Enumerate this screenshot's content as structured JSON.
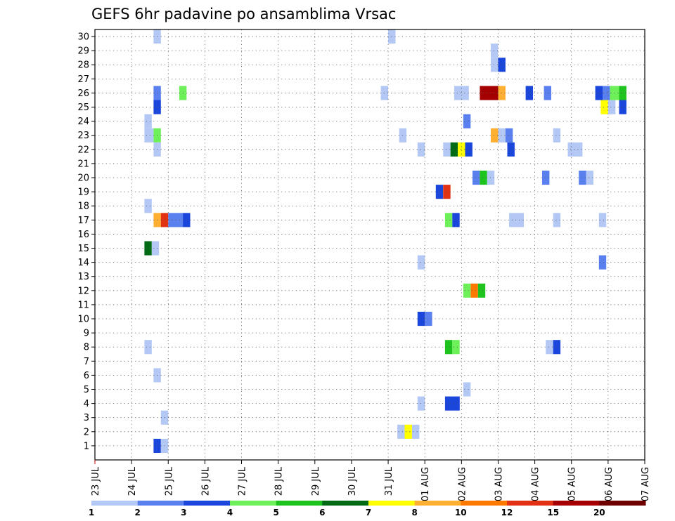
{
  "chart_data": {
    "type": "heatmap",
    "title": "GEFS 6hr padavine po ansamblima Vrsac",
    "xlabel": "",
    "ylabel": "",
    "x_ticks": [
      "23 JUL",
      "24 JUL",
      "25 JUL",
      "26 JUL",
      "27 JUL",
      "28 JUL",
      "29 JUL",
      "30 JUL",
      "31 JUL",
      "01 AUG",
      "02 AUG",
      "03 AUG",
      "04 AUG",
      "05 AUG",
      "06 AUG",
      "07 AUG"
    ],
    "y_ticks": [
      "1",
      "2",
      "3",
      "4",
      "5",
      "6",
      "7",
      "8",
      "9",
      "10",
      "11",
      "12",
      "13",
      "14",
      "15",
      "16",
      "17",
      "18",
      "19",
      "20",
      "21",
      "22",
      "23",
      "24",
      "25",
      "26",
      "27",
      "28",
      "29",
      "30"
    ],
    "x_range_days": [
      0,
      15
    ],
    "y_range": [
      0,
      30.5
    ],
    "grid": true,
    "colorbar": {
      "labels": [
        "1",
        "2",
        "3",
        "4",
        "5",
        "6",
        "7",
        "8",
        "10",
        "12",
        "15",
        "20"
      ],
      "colors": [
        "#b4c8f5",
        "#5a80f0",
        "#1a46dc",
        "#6ef05a",
        "#1ec31e",
        "#006a14",
        "#ffff00",
        "#ffaf32",
        "#ff7800",
        "#e13214",
        "#a50000",
        "#6e0000"
      ]
    },
    "cells": [
      {
        "m": 30,
        "d": [
          [
            1.6,
            1.8,
            1
          ]
        ]
      },
      {
        "m": 30,
        "d": [
          [
            8.0,
            8.2,
            1
          ]
        ]
      },
      {
        "m": 29,
        "d": [
          [
            10.8,
            11.0,
            1
          ]
        ]
      },
      {
        "m": 28,
        "d": [
          [
            10.8,
            11.0,
            1
          ],
          [
            11.0,
            11.2,
            3
          ]
        ]
      },
      {
        "m": 26,
        "d": [
          [
            1.6,
            1.8,
            2
          ],
          [
            2.3,
            2.5,
            4
          ],
          [
            7.8,
            8.0,
            1
          ],
          [
            9.8,
            10.2,
            1
          ],
          [
            10.5,
            11.0,
            11
          ],
          [
            11.0,
            11.2,
            8
          ],
          [
            11.75,
            11.95,
            3
          ],
          [
            12.25,
            12.45,
            2
          ],
          [
            13.65,
            13.85,
            3
          ],
          [
            13.85,
            14.05,
            2
          ],
          [
            14.05,
            14.3,
            4
          ],
          [
            14.3,
            14.5,
            5
          ]
        ]
      },
      {
        "m": 25,
        "d": [
          [
            1.6,
            1.8,
            3
          ],
          [
            13.8,
            14.0,
            7
          ],
          [
            14.0,
            14.2,
            1
          ],
          [
            14.3,
            14.5,
            3
          ]
        ]
      },
      {
        "m": 24,
        "d": [
          [
            1.35,
            1.55,
            1
          ],
          [
            10.05,
            10.25,
            2
          ]
        ]
      },
      {
        "m": 23,
        "d": [
          [
            1.35,
            1.6,
            1
          ],
          [
            1.6,
            1.8,
            4
          ],
          [
            8.3,
            8.5,
            1
          ],
          [
            10.8,
            11.0,
            8
          ],
          [
            11.0,
            11.2,
            1
          ],
          [
            11.2,
            11.4,
            2
          ],
          [
            12.5,
            12.7,
            1
          ]
        ]
      },
      {
        "m": 22,
        "d": [
          [
            1.6,
            1.8,
            1
          ],
          [
            8.8,
            9.0,
            1
          ],
          [
            9.5,
            9.7,
            1
          ],
          [
            9.7,
            9.9,
            6
          ],
          [
            9.9,
            10.1,
            7
          ],
          [
            10.1,
            10.3,
            3
          ],
          [
            11.25,
            11.45,
            3
          ],
          [
            12.9,
            13.3,
            1
          ]
        ]
      },
      {
        "m": 20,
        "d": [
          [
            10.3,
            10.5,
            2
          ],
          [
            10.5,
            10.7,
            5
          ],
          [
            10.7,
            10.9,
            1
          ],
          [
            12.2,
            12.4,
            2
          ],
          [
            13.2,
            13.4,
            2
          ],
          [
            13.4,
            13.6,
            1
          ]
        ]
      },
      {
        "m": 19,
        "d": [
          [
            9.3,
            9.5,
            3
          ],
          [
            9.5,
            9.7,
            10
          ]
        ]
      },
      {
        "m": 18,
        "d": [
          [
            1.35,
            1.55,
            1
          ]
        ]
      },
      {
        "m": 17,
        "d": [
          [
            1.6,
            1.8,
            8
          ],
          [
            1.8,
            2.0,
            10
          ],
          [
            2.0,
            2.4,
            2
          ],
          [
            2.4,
            2.6,
            3
          ],
          [
            9.55,
            9.75,
            4
          ],
          [
            9.75,
            9.95,
            3
          ],
          [
            11.3,
            11.7,
            1
          ],
          [
            12.5,
            12.7,
            1
          ],
          [
            13.75,
            13.95,
            1
          ]
        ]
      },
      {
        "m": 15,
        "d": [
          [
            1.35,
            1.55,
            6
          ],
          [
            1.55,
            1.75,
            1
          ]
        ]
      },
      {
        "m": 14,
        "d": [
          [
            8.8,
            9.0,
            1
          ],
          [
            13.75,
            13.95,
            2
          ]
        ]
      },
      {
        "m": 12,
        "d": [
          [
            10.05,
            10.25,
            4
          ],
          [
            10.25,
            10.45,
            9
          ],
          [
            10.45,
            10.65,
            5
          ]
        ]
      },
      {
        "m": 10,
        "d": [
          [
            8.8,
            9.0,
            3
          ],
          [
            9.0,
            9.2,
            2
          ]
        ]
      },
      {
        "m": 8,
        "d": [
          [
            1.35,
            1.55,
            1
          ],
          [
            9.55,
            9.75,
            5
          ],
          [
            9.75,
            9.95,
            4
          ],
          [
            12.3,
            12.5,
            1
          ],
          [
            12.5,
            12.7,
            3
          ]
        ]
      },
      {
        "m": 6,
        "d": [
          [
            1.6,
            1.8,
            1
          ]
        ]
      },
      {
        "m": 5,
        "d": [
          [
            10.05,
            10.25,
            1
          ]
        ]
      },
      {
        "m": 4,
        "d": [
          [
            8.8,
            9.0,
            1
          ],
          [
            9.55,
            9.95,
            3
          ]
        ]
      },
      {
        "m": 3,
        "d": [
          [
            1.8,
            2.0,
            1
          ]
        ]
      },
      {
        "m": 2,
        "d": [
          [
            8.25,
            8.45,
            1
          ],
          [
            8.45,
            8.65,
            7
          ],
          [
            8.65,
            8.85,
            1
          ]
        ]
      },
      {
        "m": 1,
        "d": [
          [
            1.6,
            1.8,
            3
          ],
          [
            1.8,
            2.0,
            1
          ]
        ]
      }
    ]
  }
}
